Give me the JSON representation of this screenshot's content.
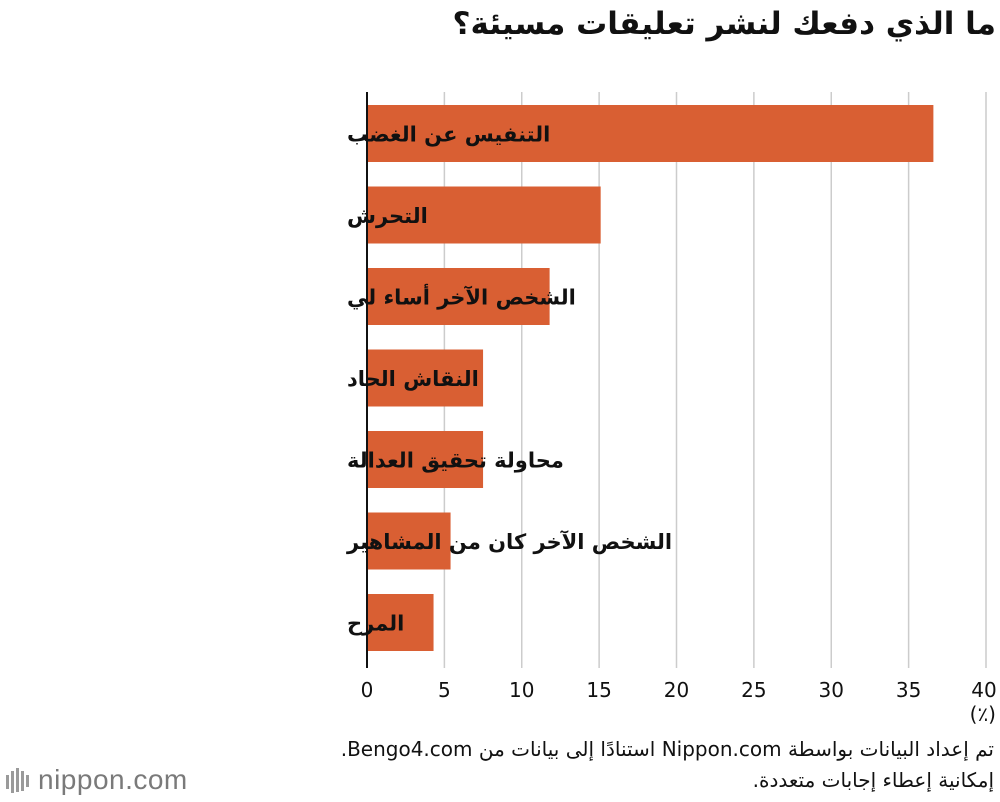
{
  "chart_data": {
    "type": "bar",
    "orientation": "horizontal",
    "title": "ما الذي دفعك لنشر تعليقات مسيئة؟",
    "categories": [
      "التنفيس عن الغضب",
      "التحرش",
      "الشخص الآخر أساء لي",
      "النقاش الحاد",
      "محاولة تحقيق العدالة",
      "الشخص الآخر كان من المشاهير",
      "المرح"
    ],
    "values": [
      36.6,
      15.1,
      11.8,
      7.5,
      7.5,
      5.4,
      4.3
    ],
    "xlim": [
      0,
      40
    ],
    "xticks": [
      "0",
      "5",
      "10",
      "15",
      "20",
      "25",
      "30",
      "35",
      "40"
    ],
    "xunit": "(٪)",
    "grid": true,
    "bar_color": "#d95f33",
    "grid_color": "#cccccc"
  },
  "footnotes": [
    "تم إعداد البيانات بواسطة Nippon.com استنادًا إلى بيانات من Bengo4.com.",
    "إمكانية إعطاء إجابات متعددة."
  ],
  "logo": {
    "text": "nippon.com",
    "icon": "nippon-bars-icon"
  }
}
